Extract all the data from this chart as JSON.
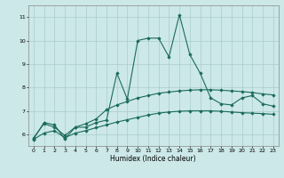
{
  "title": "",
  "xlabel": "Humidex (Indice chaleur)",
  "bg_color": "#cce8e8",
  "grid_color": "#aacccc",
  "line_color": "#1a6b5a",
  "xlim": [
    -0.5,
    23.5
  ],
  "ylim": [
    5.5,
    11.5
  ],
  "yticks": [
    6,
    7,
    8,
    9,
    10,
    11
  ],
  "xticks": [
    0,
    1,
    2,
    3,
    4,
    5,
    6,
    7,
    8,
    9,
    10,
    11,
    12,
    13,
    14,
    15,
    16,
    17,
    18,
    19,
    20,
    21,
    22,
    23
  ],
  "line1_x": [
    0,
    1,
    2,
    3,
    4,
    5,
    6,
    7,
    8,
    9,
    10,
    11,
    12,
    13,
    14,
    15,
    16,
    17,
    18,
    19,
    20,
    21,
    22,
    23
  ],
  "line1_y": [
    5.8,
    6.5,
    6.4,
    5.8,
    6.3,
    6.3,
    6.5,
    6.6,
    8.6,
    7.5,
    10.0,
    10.1,
    10.1,
    9.3,
    11.1,
    9.4,
    8.6,
    7.55,
    7.3,
    7.25,
    7.55,
    7.65,
    7.3,
    7.2
  ],
  "line2_x": [
    0,
    1,
    2,
    3,
    4,
    5,
    6,
    7,
    8,
    9,
    10,
    11,
    12,
    13,
    14,
    15,
    16,
    17,
    18,
    19,
    20,
    21,
    22,
    23
  ],
  "line2_y": [
    5.85,
    6.45,
    6.3,
    5.95,
    6.3,
    6.45,
    6.65,
    7.05,
    7.25,
    7.4,
    7.55,
    7.65,
    7.75,
    7.8,
    7.85,
    7.88,
    7.9,
    7.9,
    7.88,
    7.85,
    7.82,
    7.78,
    7.72,
    7.68
  ],
  "line3_x": [
    0,
    1,
    2,
    3,
    4,
    5,
    6,
    7,
    8,
    9,
    10,
    11,
    12,
    13,
    14,
    15,
    16,
    17,
    18,
    19,
    20,
    21,
    22,
    23
  ],
  "line3_y": [
    5.78,
    6.05,
    6.15,
    5.85,
    6.05,
    6.15,
    6.28,
    6.4,
    6.52,
    6.62,
    6.72,
    6.82,
    6.9,
    6.95,
    6.98,
    7.0,
    7.0,
    7.0,
    6.98,
    6.95,
    6.92,
    6.9,
    6.88,
    6.85
  ]
}
